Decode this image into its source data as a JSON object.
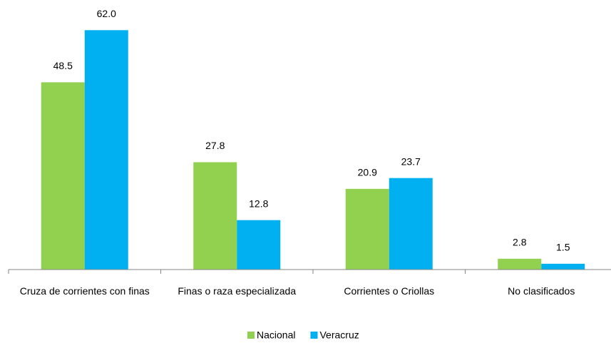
{
  "chart_data": {
    "type": "bar",
    "categories": [
      "Cruza de corrientes con finas",
      "Finas o raza especializada",
      "Corrientes o Criollas",
      "No clasificados"
    ],
    "series": [
      {
        "name": "Nacional",
        "color": "#92d050",
        "values": [
          48.5,
          27.8,
          20.9,
          2.8
        ],
        "value_labels": [
          "48.5",
          "27.8",
          "20.9",
          "2.8"
        ]
      },
      {
        "name": "Veracruz",
        "color": "#00b0f0",
        "values": [
          62.0,
          12.8,
          23.7,
          1.5
        ],
        "value_labels": [
          "62.0",
          "12.8",
          "23.7",
          "1.5"
        ]
      }
    ],
    "ylim": [
      0,
      70
    ],
    "legend": "bottom"
  }
}
